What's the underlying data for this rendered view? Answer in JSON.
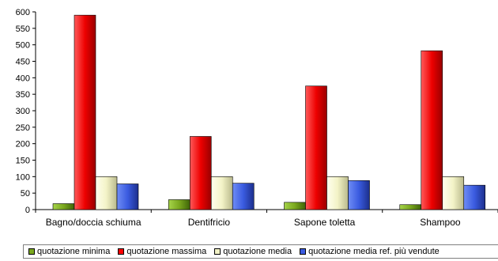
{
  "chart_data": {
    "type": "bar",
    "categories": [
      "Bagno/doccia schiuma",
      "Dentifricio",
      "Sapone toletta",
      "Shampoo"
    ],
    "series": [
      {
        "name": "quotazione minima",
        "color": "#7aa81e",
        "values": [
          18,
          30,
          22,
          15
        ]
      },
      {
        "name": "quotazione massima",
        "color": "#ff0000",
        "values": [
          590,
          222,
          375,
          482
        ]
      },
      {
        "name": "quotazione media",
        "color": "#f3f3c7",
        "values": [
          100,
          100,
          100,
          100
        ]
      },
      {
        "name": "quotazione media ref. più vendute",
        "color": "#3a5be0",
        "values": [
          78,
          80,
          88,
          74
        ]
      }
    ],
    "yticks": [
      0,
      50,
      100,
      150,
      200,
      250,
      300,
      350,
      400,
      450,
      500,
      550,
      600
    ],
    "ylim": [
      0,
      600
    ],
    "grid": false,
    "legend_position": "bottom"
  }
}
